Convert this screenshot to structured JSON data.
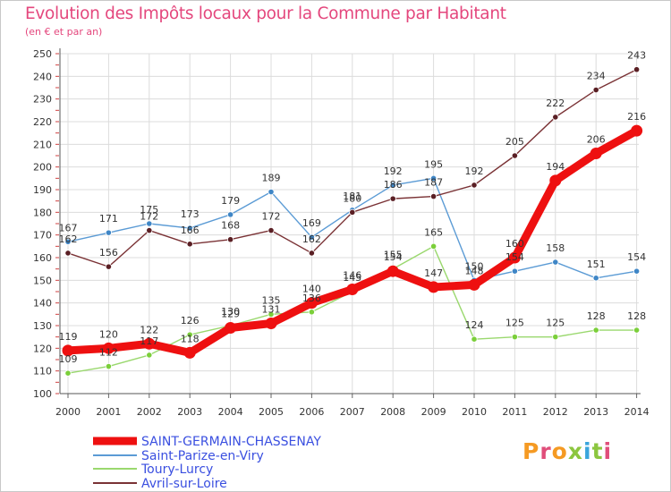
{
  "title": "Evolution des Impôts locaux pour la Commune par Habitant",
  "subtitle": "(en € et par an)",
  "logo_text": "Proxiti",
  "chart_data": {
    "type": "line",
    "title": "Evolution des Impôts locaux pour la Commune par Habitant",
    "subtitle": "(en € et par an)",
    "xlabel": "",
    "ylabel": "",
    "ylim": [
      100,
      250
    ],
    "y_ticks": [
      100,
      110,
      120,
      130,
      140,
      150,
      160,
      170,
      180,
      190,
      200,
      210,
      220,
      230,
      240,
      250
    ],
    "x": [
      "2000",
      "2001",
      "2002",
      "2003",
      "2004",
      "2005",
      "2006",
      "2007",
      "2008",
      "2009",
      "2010",
      "2011",
      "2012",
      "2013",
      "2014"
    ],
    "grid": true,
    "legend_position": "bottom-left",
    "series": [
      {
        "name": "Saint-Parize-en-Viry",
        "color": "#5b9bd5",
        "marker": "#3f86c6",
        "values": [
          167,
          171,
          175,
          173,
          179,
          189,
          169,
          181,
          192,
          195,
          150,
          154,
          158,
          151,
          154
        ],
        "labels": [
          "167",
          "171",
          "175",
          "173",
          "179",
          "189",
          "169",
          "181",
          "192",
          "195",
          "150",
          "154",
          "158",
          "151",
          "154"
        ]
      },
      {
        "name": "Toury-Lurcy",
        "color": "#9ad86e",
        "marker": "#7bcf3a",
        "values": [
          109,
          112,
          117,
          126,
          130,
          135,
          136,
          145,
          155,
          165,
          124,
          125,
          125,
          128,
          128
        ],
        "labels": [
          "109",
          "112",
          "117",
          "126",
          "130",
          "135",
          "136",
          "145",
          "155",
          "165",
          "124",
          "125",
          "125",
          "128",
          "128"
        ]
      },
      {
        "name": "Avril-sur-Loire",
        "color": "#7a3235",
        "marker": "#5a1f24",
        "values": [
          162,
          156,
          172,
          166,
          168,
          172,
          162,
          180,
          186,
          187,
          192,
          205,
          222,
          234,
          243
        ],
        "labels": [
          "162",
          "156",
          "172",
          "166",
          "168",
          "172",
          "162",
          "180",
          "186",
          "187",
          "192",
          "205",
          "222",
          "234",
          "243"
        ]
      },
      {
        "name": "SAINT-GERMAIN-CHASSENAY",
        "color": "#ee1010",
        "marker": "#ee1010",
        "values": [
          119,
          120,
          122,
          118,
          129,
          131,
          140,
          146,
          154,
          147,
          148,
          160,
          194,
          206,
          216
        ],
        "labels": [
          "119",
          "120",
          "122",
          "118",
          "129",
          "131",
          "140",
          "146",
          "154",
          "147",
          "148",
          "160",
          "194",
          "206",
          "216"
        ]
      }
    ],
    "legend": [
      "SAINT-GERMAIN-CHASSENAY",
      "Saint-Parize-en-Viry",
      "Toury-Lurcy",
      "Avril-sur-Loire"
    ]
  }
}
